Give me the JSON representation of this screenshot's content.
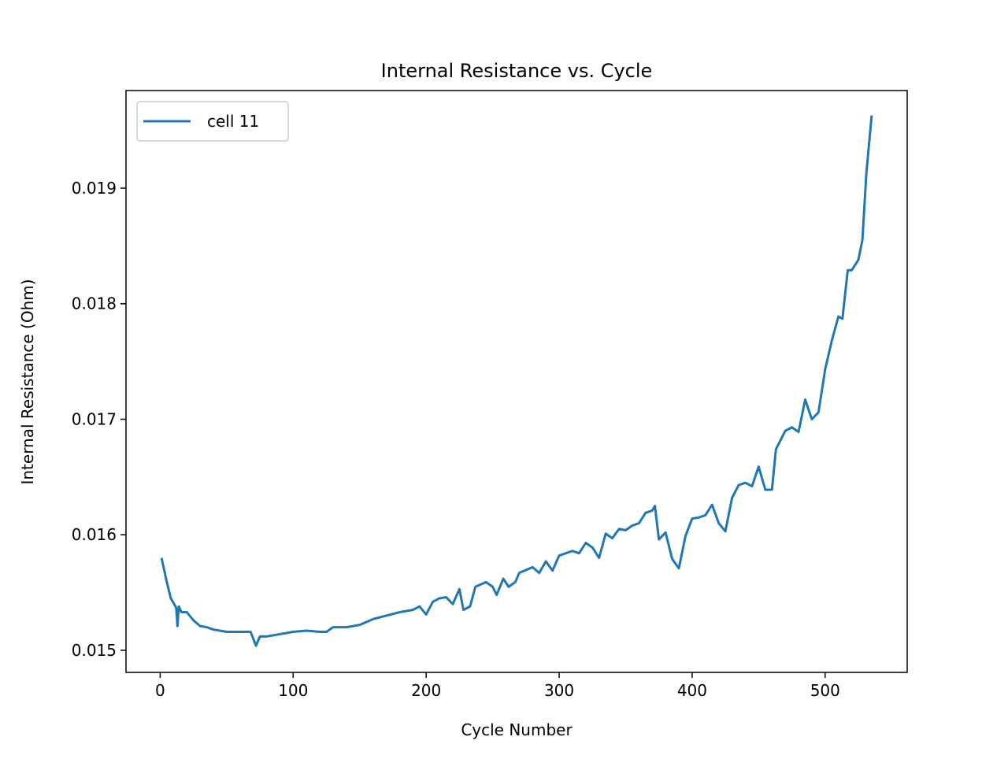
{
  "chart_data": {
    "type": "line",
    "title": "Internal Resistance vs. Cycle",
    "x_label": "Cycle Number",
    "y_label": "Internal Resistance (Ohm)",
    "x": [
      1,
      5,
      8,
      12,
      13,
      14,
      16,
      20,
      25,
      30,
      35,
      40,
      50,
      60,
      68,
      72,
      75,
      80,
      90,
      100,
      110,
      120,
      125,
      130,
      140,
      150,
      160,
      170,
      180,
      190,
      195,
      200,
      205,
      210,
      215,
      220,
      225,
      228,
      233,
      237,
      245,
      250,
      253,
      258,
      262,
      267,
      270,
      280,
      285,
      290,
      295,
      300,
      310,
      315,
      320,
      325,
      330,
      335,
      340,
      345,
      350,
      355,
      360,
      365,
      370,
      372,
      375,
      380,
      385,
      390,
      395,
      400,
      405,
      410,
      415,
      420,
      425,
      430,
      435,
      440,
      445,
      450,
      455,
      460,
      463,
      470,
      475,
      480,
      485,
      490,
      495,
      500,
      505,
      510,
      513,
      517,
      520,
      525,
      528,
      531,
      535
    ],
    "series": [
      {
        "name": "cell 11",
        "color": "#1f77b4",
        "values": [
          0.0158,
          0.01559,
          0.01545,
          0.01537,
          0.01521,
          0.01538,
          0.01533,
          0.01533,
          0.01526,
          0.01521,
          0.0152,
          0.01518,
          0.01516,
          0.01516,
          0.01516,
          0.01504,
          0.01512,
          0.01512,
          0.01514,
          0.01516,
          0.01517,
          0.01516,
          0.01516,
          0.0152,
          0.0152,
          0.01522,
          0.01527,
          0.0153,
          0.01533,
          0.01535,
          0.01538,
          0.01531,
          0.01542,
          0.01545,
          0.01546,
          0.0154,
          0.01553,
          0.01535,
          0.01538,
          0.01555,
          0.01559,
          0.01555,
          0.01548,
          0.01562,
          0.01555,
          0.01559,
          0.01567,
          0.01572,
          0.01567,
          0.01577,
          0.01569,
          0.01582,
          0.01586,
          0.01584,
          0.01593,
          0.01589,
          0.0158,
          0.01601,
          0.01597,
          0.01605,
          0.01604,
          0.01608,
          0.0161,
          0.01619,
          0.01621,
          0.01625,
          0.01596,
          0.01602,
          0.01579,
          0.01571,
          0.01599,
          0.01614,
          0.01615,
          0.01617,
          0.01626,
          0.0161,
          0.01603,
          0.01632,
          0.01643,
          0.01645,
          0.01642,
          0.01659,
          0.01639,
          0.01639,
          0.01674,
          0.0169,
          0.01693,
          0.01689,
          0.01717,
          0.017,
          0.01706,
          0.01743,
          0.01768,
          0.01789,
          0.01787,
          0.01829,
          0.01829,
          0.01838,
          0.01855,
          0.01913,
          0.01963
        ]
      }
    ],
    "xlim": [
      -25.7,
      561.7
    ],
    "ylim": [
      0.014809,
      0.019845
    ],
    "xticks": [
      0,
      100,
      200,
      300,
      400,
      500
    ],
    "yticks": [
      0.015,
      0.016,
      0.017,
      0.018,
      0.019
    ],
    "grid": false,
    "legend": "upper left"
  }
}
